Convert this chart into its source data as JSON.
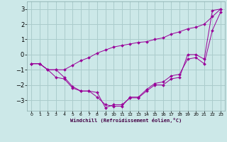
{
  "xlabel": "Windchill (Refroidissement éolien,°C)",
  "background_color": "#cce8e8",
  "grid_color": "#aacccc",
  "line_color": "#990099",
  "xlim": [
    -0.5,
    23.5
  ],
  "ylim": [
    -3.7,
    3.5
  ],
  "yticks": [
    -3,
    -2,
    -1,
    0,
    1,
    2,
    3
  ],
  "xticks": [
    0,
    1,
    2,
    3,
    4,
    5,
    6,
    7,
    8,
    9,
    10,
    11,
    12,
    13,
    14,
    15,
    16,
    17,
    18,
    19,
    20,
    21,
    22,
    23
  ],
  "series": [
    [
      -0.6,
      -0.6,
      -1.0,
      -1.5,
      -1.6,
      -2.2,
      -2.4,
      -2.4,
      -2.5,
      -3.5,
      -3.3,
      -3.3,
      -2.85,
      -2.85,
      -2.4,
      -2.0,
      -2.0,
      -1.6,
      -1.5,
      0.0,
      0.0,
      -0.3,
      2.9,
      3.0
    ],
    [
      -0.6,
      -0.6,
      -1.0,
      -1.0,
      -1.5,
      -2.1,
      -2.4,
      -2.4,
      -2.8,
      -3.3,
      -3.4,
      -3.4,
      -2.8,
      -2.8,
      -2.3,
      -1.9,
      -1.8,
      -1.4,
      -1.3,
      -0.3,
      -0.2,
      -0.6,
      1.6,
      2.8
    ],
    [
      -0.6,
      -0.6,
      -1.0,
      -1.0,
      -1.0,
      -0.7,
      -0.4,
      -0.2,
      0.1,
      0.3,
      0.5,
      0.6,
      0.7,
      0.8,
      0.85,
      1.0,
      1.1,
      1.35,
      1.5,
      1.7,
      1.8,
      2.0,
      2.5,
      3.0
    ]
  ]
}
